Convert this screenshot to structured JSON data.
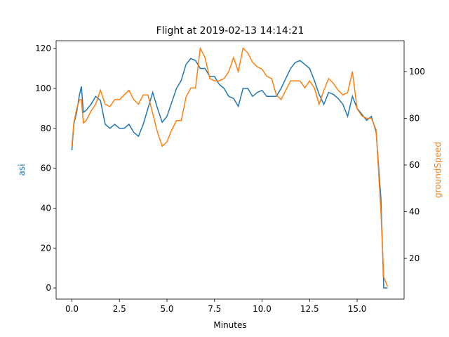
{
  "chart_data": {
    "type": "line",
    "title": "Flight at 2019-02-13 14:14:21",
    "x_label": "Minutes",
    "y_label": "asi",
    "y2_label": "groundSpeed",
    "x": [
      0,
      0.1,
      0.25,
      0.4,
      0.5,
      0.6,
      0.75,
      1.0,
      1.25,
      1.5,
      1.75,
      2.0,
      2.25,
      2.5,
      2.75,
      3.0,
      3.25,
      3.5,
      3.75,
      4.0,
      4.25,
      4.5,
      4.75,
      5.0,
      5.25,
      5.5,
      5.75,
      6.0,
      6.25,
      6.5,
      6.75,
      7.0,
      7.25,
      7.5,
      7.75,
      8.0,
      8.25,
      8.5,
      8.75,
      9.0,
      9.25,
      9.5,
      9.75,
      10.0,
      10.25,
      10.5,
      10.75,
      11.0,
      11.25,
      11.5,
      11.75,
      12.0,
      12.25,
      12.5,
      12.75,
      13.0,
      13.25,
      13.5,
      13.75,
      14.0,
      14.25,
      14.5,
      14.75,
      15.0,
      15.25,
      15.5,
      15.75,
      16.0,
      16.25,
      16.4,
      16.6
    ],
    "series": [
      {
        "name": "asi",
        "color": "#1f77b4",
        "values": [
          69,
          82,
          88,
          97,
          101,
          88,
          89,
          92,
          96,
          94,
          82,
          80,
          82,
          80,
          80,
          82,
          78,
          76,
          82,
          90,
          98,
          90,
          83,
          86,
          93,
          100,
          104,
          112,
          115,
          114,
          110,
          110,
          106,
          106,
          102,
          100,
          96,
          95,
          91,
          100,
          100,
          96,
          98,
          99,
          96,
          96,
          96,
          100,
          105,
          110,
          113,
          114,
          112,
          110,
          104,
          97,
          92,
          98,
          97,
          95,
          92,
          86,
          96,
          90,
          87,
          84,
          86,
          78,
          45,
          0,
          0
        ]
      },
      {
        "name": "groundSpeed",
        "color": "#ff7f0e",
        "axis": "y2",
        "values": [
          68,
          78,
          84,
          88,
          88,
          78,
          79,
          83,
          86,
          92,
          86,
          85,
          88,
          88,
          90,
          92,
          88,
          86,
          90,
          90,
          82,
          74,
          68,
          70,
          75,
          79,
          79,
          89,
          93,
          93,
          110,
          106,
          97,
          96,
          96,
          97,
          100,
          106,
          100,
          110,
          108,
          104,
          102,
          101,
          98,
          97,
          90,
          88,
          92,
          96,
          96,
          96,
          93,
          96,
          93,
          86,
          92,
          97,
          95,
          92,
          90,
          91,
          100,
          84,
          81,
          80,
          80,
          75,
          40,
          12,
          8
        ]
      }
    ],
    "xlim": [
      -0.83,
      17.47
    ],
    "xticks": [
      {
        "value": 0,
        "label": "0.0"
      },
      {
        "value": 2.5,
        "label": "2.5"
      },
      {
        "value": 5,
        "label": "5.0"
      },
      {
        "value": 7.5,
        "label": "7.5"
      },
      {
        "value": 10,
        "label": "10.0"
      },
      {
        "value": 12.5,
        "label": "12.5"
      },
      {
        "value": 15,
        "label": "15.0"
      }
    ],
    "ylim": [
      -5.6,
      123.9
    ],
    "yticks": [
      0,
      20,
      40,
      60,
      80,
      100,
      120
    ],
    "y2lim": [
      2.6,
      113.2
    ],
    "y2ticks": [
      20,
      40,
      60,
      80,
      100
    ]
  }
}
